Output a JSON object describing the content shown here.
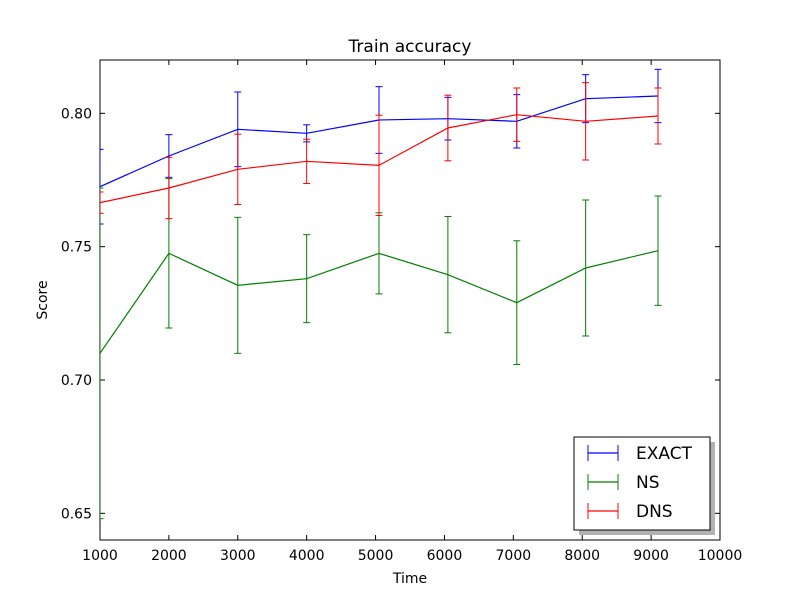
{
  "chart_data": {
    "type": "line",
    "title": "Train accuracy",
    "xlabel": "Time",
    "ylabel": "Score",
    "xlim": [
      1000,
      10000
    ],
    "ylim": [
      0.64,
      0.82
    ],
    "xticks": [
      1000,
      2000,
      3000,
      4000,
      5000,
      6000,
      7000,
      8000,
      9000,
      10000
    ],
    "xtick_labels": [
      "1000",
      "2000",
      "3000",
      "4000",
      "5000",
      "6000",
      "7000",
      "8000",
      "9000",
      "10000"
    ],
    "yticks": [
      0.65,
      0.7,
      0.75,
      0.8
    ],
    "ytick_labels": [
      "0.65",
      "0.70",
      "0.75",
      "0.80"
    ],
    "grid": false,
    "legend_position": "lower-right",
    "error_bars": true,
    "series": [
      {
        "name": "EXACT",
        "color": "#0000ff",
        "x": [
          1000,
          2000,
          3000,
          4000,
          5050,
          6050,
          7050,
          8050,
          9100
        ],
        "y": [
          0.7725,
          0.784,
          0.794,
          0.7925,
          0.7975,
          0.798,
          0.797,
          0.8055,
          0.8065
        ],
        "err": [
          0.014,
          0.008,
          0.014,
          0.0032,
          0.0125,
          0.008,
          0.01,
          0.009,
          0.01
        ]
      },
      {
        "name": "NS",
        "color": "#008000",
        "x": [
          1000,
          2000,
          3000,
          4000,
          5050,
          6050,
          7050,
          8050,
          9100
        ],
        "y": [
          0.71,
          0.7475,
          0.7355,
          0.738,
          0.7475,
          0.7395,
          0.729,
          0.742,
          0.7485
        ],
        "err": [
          0.062,
          0.028,
          0.0255,
          0.0165,
          0.0152,
          0.0218,
          0.0232,
          0.0255,
          0.0205
        ]
      },
      {
        "name": "DNS",
        "color": "#ff0000",
        "x": [
          1000,
          2000,
          3000,
          4000,
          5050,
          6050,
          7050,
          8050,
          9100
        ],
        "y": [
          0.7665,
          0.772,
          0.779,
          0.782,
          0.7805,
          0.7945,
          0.7995,
          0.797,
          0.799
        ],
        "err": [
          0.004,
          0.0115,
          0.0132,
          0.0083,
          0.0188,
          0.0123,
          0.01,
          0.0145,
          0.0105
        ]
      }
    ]
  }
}
